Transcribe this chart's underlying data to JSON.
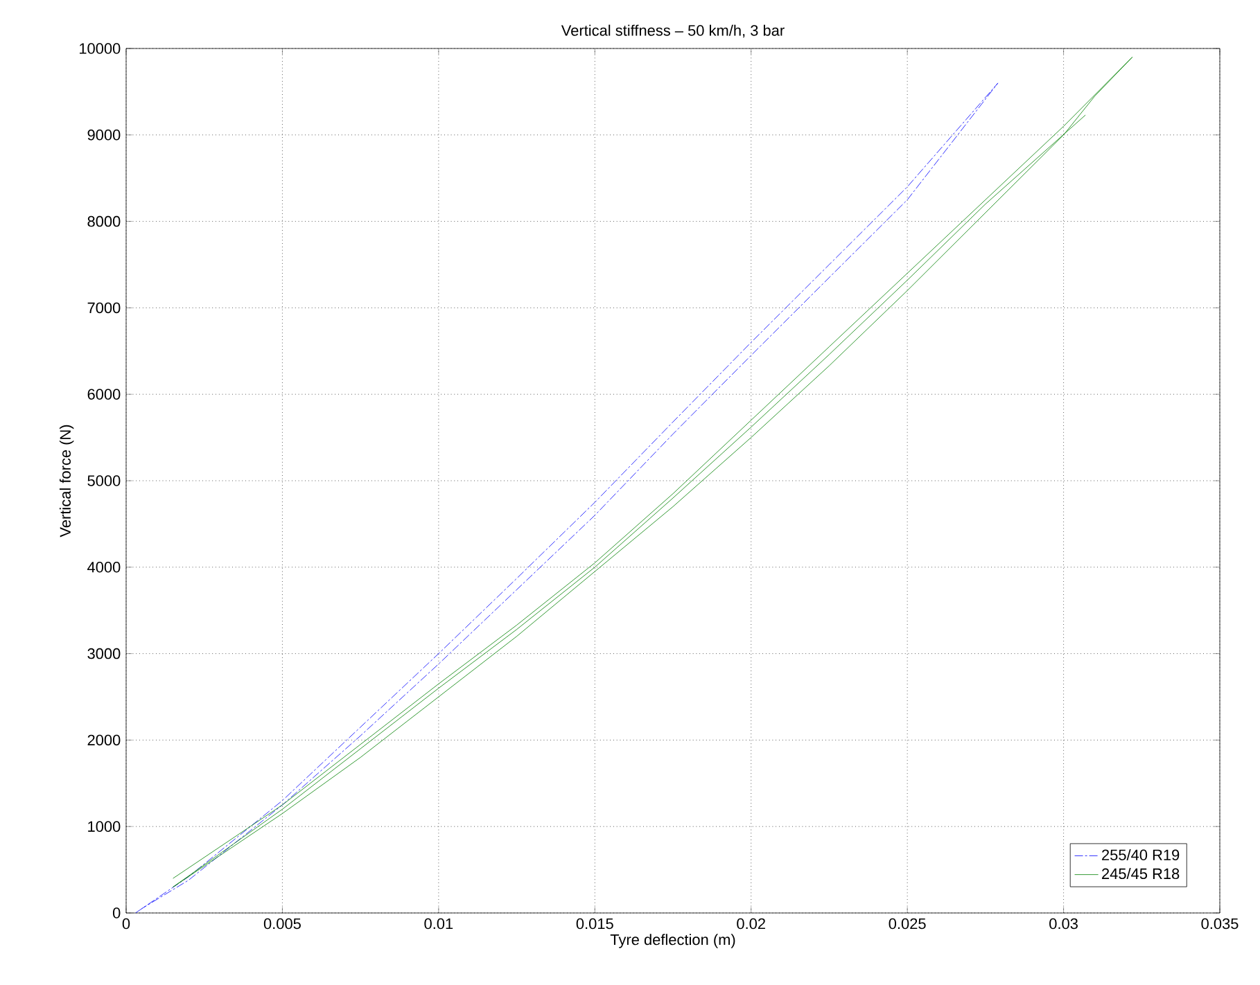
{
  "chart_data": {
    "type": "line",
    "title": "Vertical stiffness – 50 km/h, 3 bar",
    "xlabel": "Tyre deflection (m)",
    "ylabel": "Vertical force (N)",
    "xlim": [
      0,
      0.035
    ],
    "ylim": [
      0,
      10000
    ],
    "xticks": [
      0,
      0.005,
      0.01,
      0.015,
      0.02,
      0.025,
      0.03,
      0.035
    ],
    "yticks": [
      0,
      1000,
      2000,
      3000,
      4000,
      5000,
      6000,
      7000,
      8000,
      9000,
      10000
    ],
    "grid": true,
    "legend": "bottom right",
    "series": [
      {
        "name": "255/40 R19",
        "color": "#0000ff",
        "line_style": "dashdot",
        "x": [
          0.0003,
          0.002,
          0.005,
          0.0075,
          0.01,
          0.0125,
          0.015,
          0.0175,
          0.02,
          0.0225,
          0.025,
          0.0279,
          0.025,
          0.02,
          0.0175,
          0.015,
          0.0125,
          0.01,
          0.0075,
          0.005,
          0.002,
          0.0005
        ],
        "values": [
          0,
          420,
          1300,
          2150,
          3000,
          3870,
          4750,
          5680,
          6600,
          7500,
          8400,
          9600,
          8250,
          6450,
          5540,
          4600,
          3740,
          2880,
          2050,
          1250,
          380,
          50
        ]
      },
      {
        "name": "245/45 R18",
        "color": "#008000",
        "line_style": "solid",
        "x": [
          0.0015,
          0.005,
          0.0075,
          0.01,
          0.0125,
          0.015,
          0.0175,
          0.02,
          0.0225,
          0.025,
          0.0275,
          0.03,
          0.0322,
          0.031,
          0.03,
          0.0275,
          0.025,
          0.0225,
          0.02,
          0.0175,
          0.015,
          0.0125,
          0.01,
          0.0075,
          0.005,
          0.0015,
          0.005,
          0.0075,
          0.01,
          0.0125,
          0.015,
          0.0175,
          0.02,
          0.0225,
          0.025,
          0.0275,
          0.0307
        ],
        "values": [
          400,
          1250,
          1950,
          2650,
          3330,
          4050,
          4850,
          5700,
          6550,
          7400,
          8250,
          9100,
          9900,
          9450,
          9000,
          8100,
          7200,
          6330,
          5500,
          4700,
          3950,
          3200,
          2500,
          1800,
          1150,
          300,
          1200,
          1900,
          2600,
          3280,
          4000,
          4800,
          5620,
          6460,
          7320,
          8200,
          9230
        ]
      }
    ]
  }
}
